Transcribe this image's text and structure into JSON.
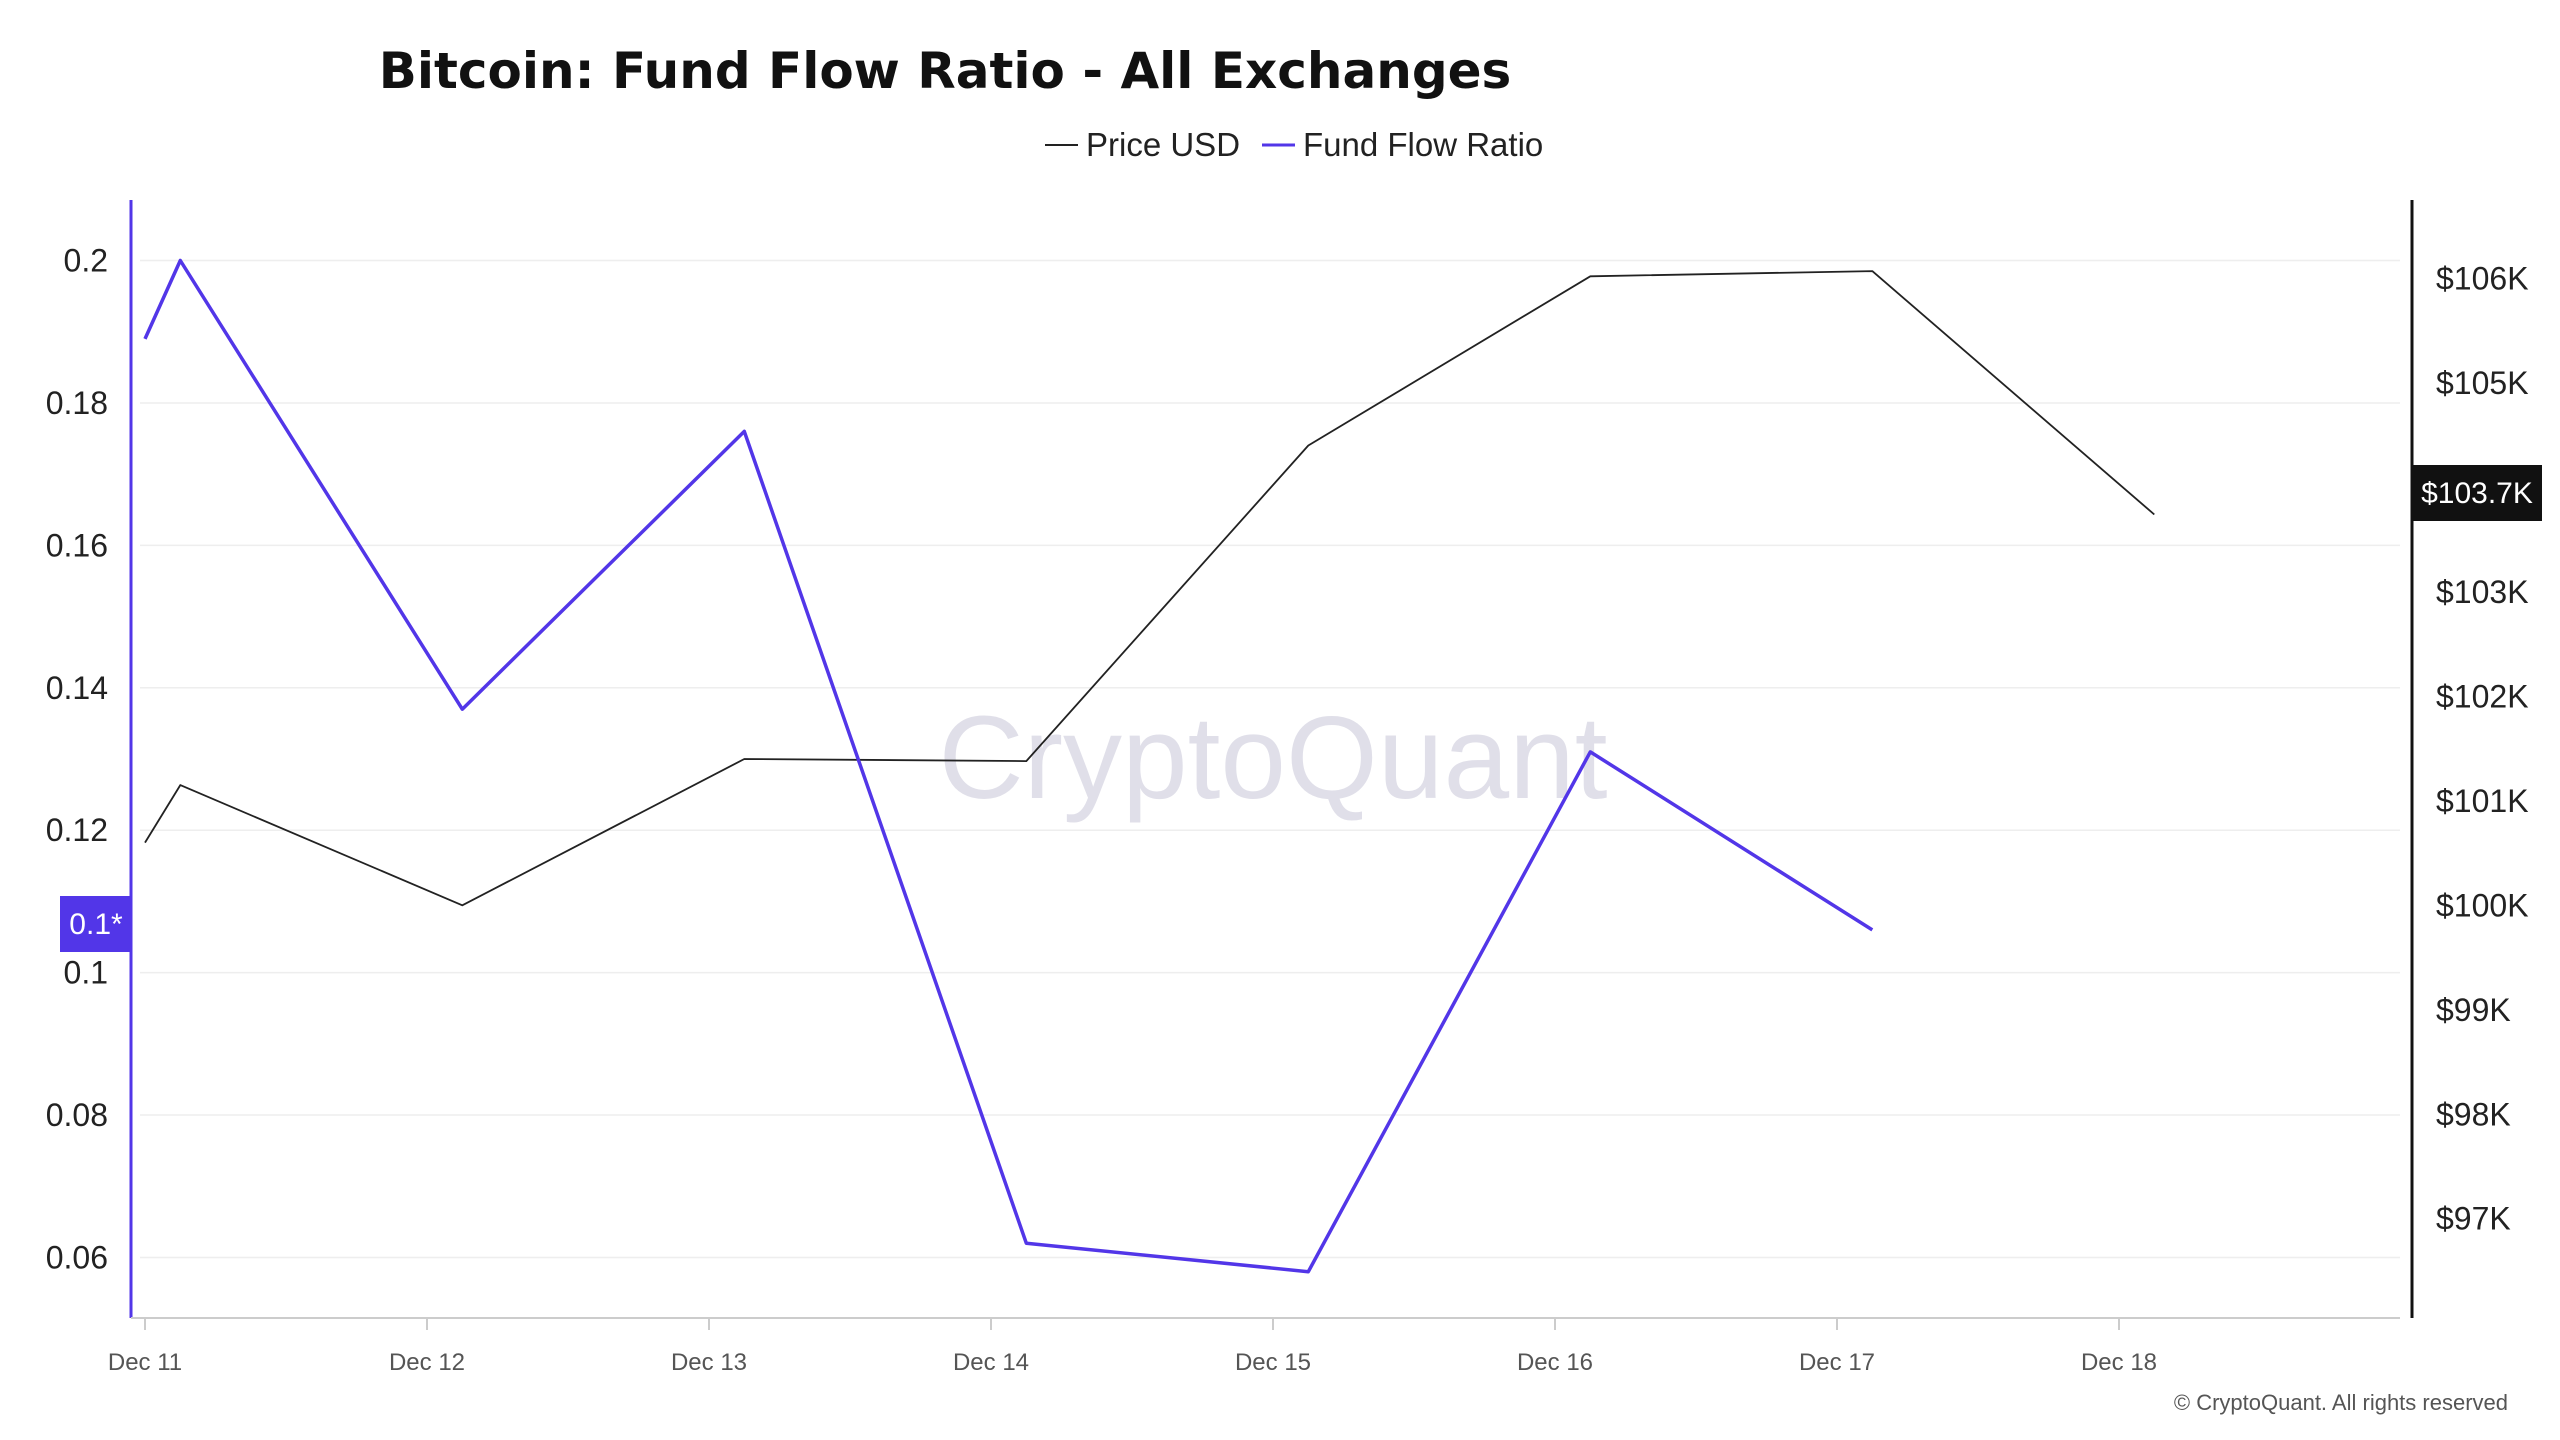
{
  "chart_data": {
    "type": "line",
    "title": "Bitcoin: Fund Flow Ratio - All Exchanges",
    "x": [
      "Dec 11",
      "Dec 12",
      "Dec 13",
      "Dec 14",
      "Dec 15",
      "Dec 16",
      "Dec 17",
      "Dec 18"
    ],
    "series": [
      {
        "name": "Price USD",
        "axis": "right",
        "color": "#222222",
        "points": [
          {
            "x": "Dec 11 00:00",
            "y": 100600
          },
          {
            "x": "Dec 11 03:00",
            "y": 101150
          },
          {
            "x": "Dec 12 03:00",
            "y": 100000
          },
          {
            "x": "Dec 13 03:00",
            "y": 101400
          },
          {
            "x": "Dec 14 03:00",
            "y": 101380
          },
          {
            "x": "Dec 15 03:00",
            "y": 104400
          },
          {
            "x": "Dec 16 03:00",
            "y": 106020
          },
          {
            "x": "Dec 17 03:00",
            "y": 106070
          },
          {
            "x": "Dec 18 03:00",
            "y": 103740
          }
        ]
      },
      {
        "name": "Fund Flow Ratio",
        "axis": "left",
        "color": "#5236e8",
        "points": [
          {
            "x": "Dec 11 00:00",
            "y": 0.189
          },
          {
            "x": "Dec 11 03:00",
            "y": 0.2
          },
          {
            "x": "Dec 12 03:00",
            "y": 0.137
          },
          {
            "x": "Dec 13 03:00",
            "y": 0.176
          },
          {
            "x": "Dec 14 03:00",
            "y": 0.062
          },
          {
            "x": "Dec 15 03:00",
            "y": 0.058
          },
          {
            "x": "Dec 16 03:00",
            "y": 0.131
          },
          {
            "x": "Dec 17 03:00",
            "y": 0.106
          }
        ]
      }
    ],
    "y_left": {
      "ticks": [
        "0.06",
        "0.08",
        "0.1",
        "0.12",
        "0.14",
        "0.16",
        "0.18",
        "0.2"
      ],
      "range": [
        0.0515,
        0.2085
      ]
    },
    "y_right": {
      "ticks": [
        "$97K",
        "$98K",
        "$99K",
        "$100K",
        "$101K",
        "$102K",
        "$103K",
        "$105K",
        "$106K"
      ],
      "range": [
        96050,
        106750
      ]
    },
    "last_value_tags": {
      "left": "0.1*",
      "right": "$103.7K"
    },
    "legend_position": "top-center",
    "grid": "horizontal"
  },
  "watermark": "CryptoQuant",
  "copyright": "© CryptoQuant. All rights reserved",
  "colors": {
    "price": "#222222",
    "ratio": "#5236e8",
    "right_tag_bg": "#111111"
  }
}
